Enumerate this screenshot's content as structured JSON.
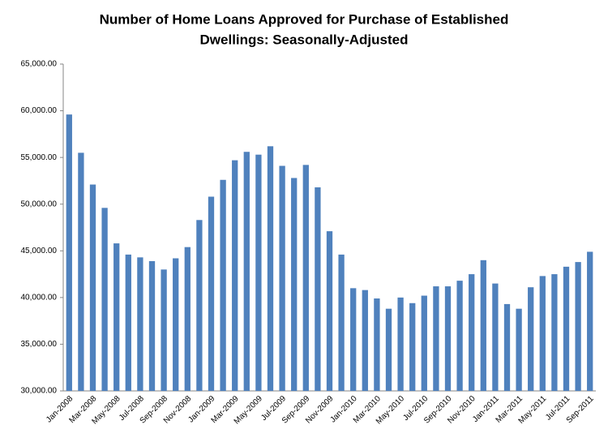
{
  "chart_data": {
    "type": "bar",
    "title": [
      "Number of Home Loans Approved for Purchase of Established",
      "Dwellings: Seasonally-Adjusted"
    ],
    "categories": [
      "Jan-2008",
      null,
      "Mar-2008",
      null,
      "May-2008",
      null,
      "Jul-2008",
      null,
      "Sep-2008",
      null,
      "Nov-2008",
      null,
      "Jan-2009",
      null,
      "Mar-2009",
      null,
      "May-2009",
      null,
      "Jul-2009",
      null,
      "Sep-2009",
      null,
      "Nov-2009",
      null,
      "Jan-2010",
      null,
      "Mar-2010",
      null,
      "May-2010",
      null,
      "Jul-2010",
      null,
      "Sep-2010",
      null,
      "Nov-2010",
      null,
      "Jan-2011",
      null,
      "Mar-2011",
      null,
      "May-2011",
      null,
      "Jul-2011",
      null,
      "Sep-2011"
    ],
    "values": [
      59600,
      55500,
      52100,
      49600,
      45800,
      44600,
      44300,
      43900,
      43000,
      44200,
      45400,
      48300,
      50800,
      52600,
      54700,
      55600,
      55300,
      56200,
      54100,
      52800,
      54200,
      51800,
      47100,
      44600,
      41000,
      40800,
      39900,
      38800,
      40000,
      39400,
      40200,
      41200,
      41200,
      41800,
      42500,
      44000,
      41500,
      39300,
      38800,
      41100,
      42300,
      42500,
      43300,
      43800,
      44900
    ],
    "color": "#4f81bd",
    "ylim": [
      30000,
      65000
    ],
    "yticks": [
      {
        "value": 30000,
        "label": "30,000.00"
      },
      {
        "value": 35000,
        "label": "35,000.00"
      },
      {
        "value": 40000,
        "label": "40,000.00"
      },
      {
        "value": 45000,
        "label": "45,000.00"
      },
      {
        "value": 50000,
        "label": "50,000.00"
      },
      {
        "value": 55000,
        "label": "55,000.00"
      },
      {
        "value": 60000,
        "label": "60,000.00"
      },
      {
        "value": 65000,
        "label": "65,000.00"
      }
    ],
    "grid": false
  }
}
